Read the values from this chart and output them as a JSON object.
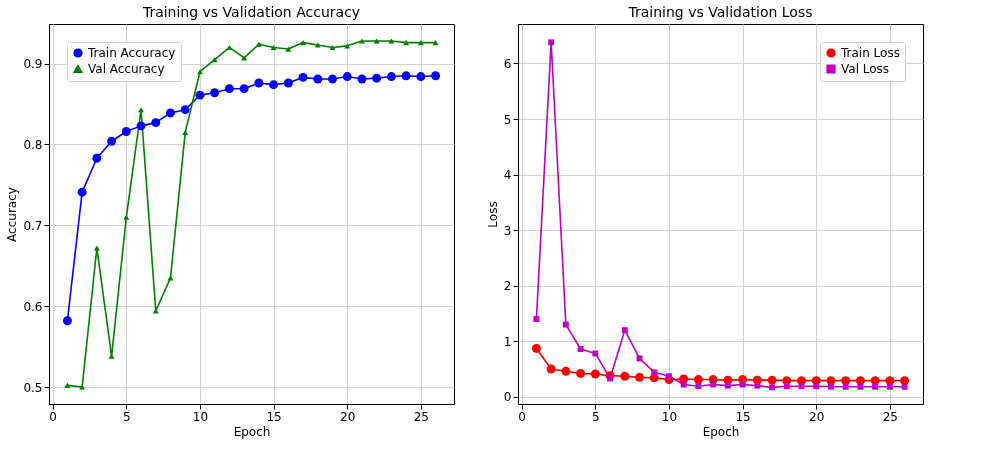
{
  "chart_data": [
    {
      "type": "line",
      "title": "Training vs Validation Accuracy",
      "xlabel": "Epoch",
      "ylabel": "Accuracy",
      "x": [
        1,
        2,
        3,
        4,
        5,
        6,
        7,
        8,
        9,
        10,
        11,
        12,
        13,
        14,
        15,
        16,
        17,
        18,
        19,
        20,
        21,
        22,
        23,
        24,
        25,
        26
      ],
      "series": [
        {
          "name": "Train Accuracy",
          "color": "#0000ff",
          "marker": "circle",
          "values": [
            0.582,
            0.741,
            0.783,
            0.804,
            0.816,
            0.823,
            0.827,
            0.839,
            0.843,
            0.861,
            0.864,
            0.869,
            0.869,
            0.876,
            0.874,
            0.876,
            0.883,
            0.881,
            0.881,
            0.884,
            0.881,
            0.882,
            0.884,
            0.885,
            0.884,
            0.885
          ]
        },
        {
          "name": "Val Accuracy",
          "color": "#008000",
          "marker": "triangle",
          "values": [
            0.502,
            0.5,
            0.672,
            0.538,
            0.71,
            0.843,
            0.594,
            0.635,
            0.815,
            0.89,
            0.905,
            0.92,
            0.907,
            0.924,
            0.92,
            0.918,
            0.926,
            0.923,
            0.92,
            0.922,
            0.928,
            0.928,
            0.928,
            0.926,
            0.926,
            0.926
          ]
        }
      ],
      "xlim": [
        -0.25,
        27.25
      ],
      "xticks": [
        0,
        5,
        10,
        15,
        20,
        25
      ],
      "ylim": [
        0.479,
        0.949
      ],
      "yticks": [
        0.5,
        0.6,
        0.7,
        0.8,
        0.9
      ],
      "grid": true,
      "legend": "top left"
    },
    {
      "type": "line",
      "title": "Training vs Validation Loss",
      "xlabel": "Epoch",
      "ylabel": "Loss",
      "x": [
        1,
        2,
        3,
        4,
        5,
        6,
        7,
        8,
        9,
        10,
        11,
        12,
        13,
        14,
        15,
        16,
        17,
        18,
        19,
        20,
        21,
        22,
        23,
        24,
        25,
        26
      ],
      "series": [
        {
          "name": "Train Loss",
          "color": "#ff0000",
          "marker": "circle",
          "values": [
            0.87,
            0.5,
            0.46,
            0.42,
            0.41,
            0.38,
            0.37,
            0.35,
            0.34,
            0.31,
            0.32,
            0.31,
            0.31,
            0.3,
            0.31,
            0.3,
            0.3,
            0.29,
            0.29,
            0.29,
            0.29,
            0.29,
            0.29,
            0.29,
            0.29,
            0.29
          ]
        },
        {
          "name": "Val Loss",
          "color": "#bf00bf",
          "marker": "square",
          "values": [
            1.4,
            6.38,
            1.3,
            0.86,
            0.78,
            0.33,
            1.2,
            0.69,
            0.44,
            0.37,
            0.22,
            0.19,
            0.22,
            0.2,
            0.22,
            0.2,
            0.17,
            0.19,
            0.19,
            0.19,
            0.18,
            0.18,
            0.18,
            0.18,
            0.18,
            0.18
          ]
        }
      ],
      "xlim": [
        -0.25,
        27.25
      ],
      "xticks": [
        0,
        5,
        10,
        15,
        20,
        25
      ],
      "ylim": [
        -0.13,
        6.71
      ],
      "yticks": [
        0,
        1,
        2,
        3,
        4,
        5,
        6
      ],
      "grid": true,
      "legend": "top right"
    }
  ]
}
